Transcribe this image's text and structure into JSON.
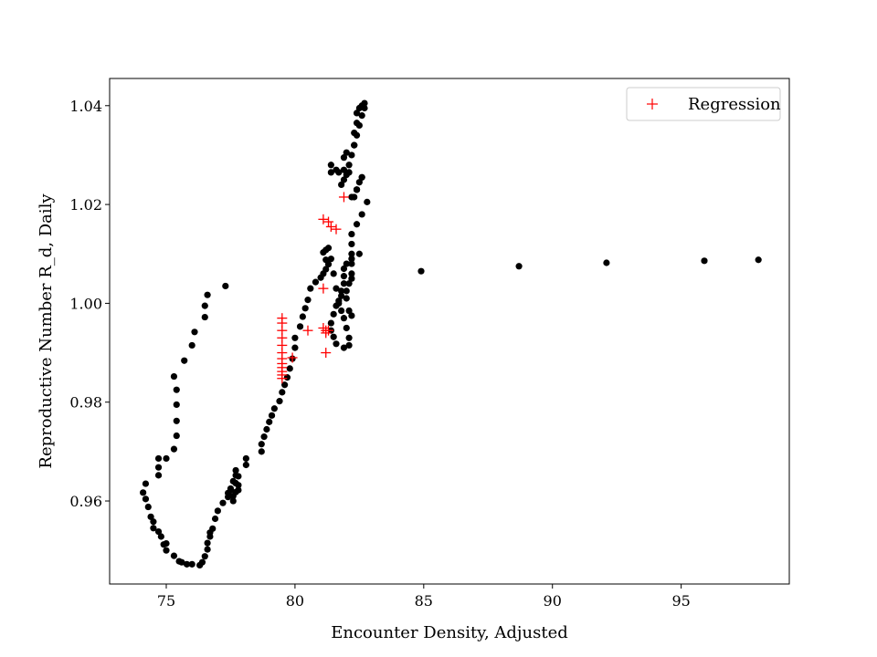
{
  "chart_data": {
    "type": "scatter",
    "title": "",
    "xlabel": "Encounter Density, Adjusted",
    "ylabel": "Reproductive Number R_d, Daily",
    "xlim": [
      72.8,
      99.2
    ],
    "ylim": [
      0.9432,
      1.0455
    ],
    "xticks": [
      75,
      80,
      85,
      90,
      95
    ],
    "yticks": [
      0.96,
      0.98,
      1.0,
      1.02,
      1.04
    ],
    "xtick_labels": [
      "75",
      "80",
      "85",
      "90",
      "95"
    ],
    "ytick_labels": [
      "0.96",
      "0.98",
      "1.00",
      "1.02",
      "1.04"
    ],
    "grid": false,
    "legend": {
      "position": "top-right",
      "entries": [
        "Regression"
      ]
    },
    "colors": {
      "data": "#000000",
      "regression": "#ff0000"
    },
    "series": [
      {
        "marker": "circle",
        "color": "#000000",
        "x": [
          77.3,
          76.6,
          76.5,
          76.5,
          76.1,
          76.0,
          75.7,
          75.3,
          75.4,
          75.4,
          75.4,
          75.4,
          75.3,
          75.0,
          74.7,
          74.7,
          74.7,
          74.2,
          74.1,
          74.2,
          74.3,
          74.4,
          74.5,
          74.5,
          74.7,
          74.8,
          74.9,
          75.0,
          75.0,
          75.3,
          75.5,
          75.6,
          75.8,
          76.0,
          76.3,
          76.4,
          76.5,
          76.6,
          76.6,
          76.7,
          76.7,
          76.8,
          76.9,
          77.0,
          77.2,
          77.4,
          77.5,
          77.6,
          77.6,
          77.7,
          77.8,
          77.8,
          77.7,
          77.5,
          77.4,
          77.6,
          77.7,
          77.7,
          77.8,
          78.1,
          78.1,
          78.7,
          78.7,
          78.8,
          78.9,
          79.0,
          79.1,
          79.2,
          79.4,
          79.5,
          79.6,
          79.7,
          79.8,
          79.9,
          80.0,
          80.0,
          80.2,
          80.3,
          80.4,
          80.5,
          80.6,
          80.8,
          81.0,
          81.1,
          81.2,
          81.3,
          81.2,
          81.1,
          81.2,
          81.3,
          81.4,
          81.5,
          81.6,
          81.7,
          81.8,
          81.9,
          82.0,
          82.1,
          82.1,
          81.9,
          81.6,
          81.5,
          81.4,
          81.4,
          81.5,
          81.6,
          81.7,
          81.8,
          81.8,
          81.9,
          81.9,
          81.9,
          82.0,
          82.2,
          82.5,
          82.2,
          82.2,
          82.1,
          82.0,
          82.0,
          82.1,
          82.2,
          82.2,
          82.2,
          82.2,
          82.2,
          82.4,
          82.6,
          82.8,
          82.4,
          82.1,
          81.9,
          81.7,
          81.6,
          81.4,
          81.4,
          81.9,
          82.0,
          82.3,
          82.3,
          82.4,
          82.4,
          82.5,
          82.6,
          82.7,
          82.7,
          82.6,
          82.5,
          82.4,
          82.3,
          82.2,
          82.1,
          82.0,
          81.9,
          81.8,
          82.4,
          82.5,
          82.6,
          82.6,
          82.4,
          82.3,
          82.2,
          84.9,
          88.7,
          92.1,
          95.9,
          98.0
        ],
        "y": [
          1.0035,
          1.0017,
          0.9995,
          0.9972,
          0.9942,
          0.9915,
          0.9884,
          0.9852,
          0.9825,
          0.9795,
          0.9762,
          0.9732,
          0.9705,
          0.9686,
          0.9668,
          0.9652,
          0.9686,
          0.9635,
          0.9617,
          0.9604,
          0.9588,
          0.9568,
          0.9558,
          0.9545,
          0.9538,
          0.9528,
          0.9512,
          0.95,
          0.9514,
          0.9489,
          0.9478,
          0.9476,
          0.9472,
          0.9472,
          0.947,
          0.9476,
          0.9488,
          0.9502,
          0.9515,
          0.9528,
          0.9536,
          0.9544,
          0.9564,
          0.958,
          0.9596,
          0.9608,
          0.9625,
          0.961,
          0.96,
          0.9618,
          0.9632,
          0.965,
          0.9636,
          0.9622,
          0.9616,
          0.964,
          0.9652,
          0.9662,
          0.9622,
          0.9673,
          0.9686,
          0.97,
          0.9715,
          0.973,
          0.9745,
          0.976,
          0.9773,
          0.9787,
          0.9802,
          0.982,
          0.9835,
          0.985,
          0.9868,
          0.9888,
          0.991,
          0.993,
          0.9953,
          0.9973,
          0.999,
          1.0007,
          1.003,
          1.0043,
          1.0052,
          1.006,
          1.0069,
          1.0079,
          1.0088,
          1.0103,
          1.0108,
          1.0112,
          1.009,
          1.006,
          1.003,
          1.0,
          0.9985,
          0.997,
          0.995,
          0.993,
          0.9915,
          0.991,
          0.9918,
          0.9932,
          0.9945,
          0.996,
          0.9978,
          0.9995,
          1.0005,
          1.0015,
          1.0025,
          1.004,
          1.0055,
          1.007,
          1.008,
          1.009,
          1.01,
          1.005,
          0.9975,
          0.9985,
          1.001,
          1.0025,
          1.004,
          1.006,
          1.008,
          1.01,
          1.012,
          1.014,
          1.016,
          1.018,
          1.0205,
          1.023,
          1.0265,
          1.027,
          1.0265,
          1.027,
          1.028,
          1.0265,
          1.0295,
          1.0305,
          1.032,
          1.0345,
          1.0365,
          1.0385,
          1.0395,
          1.04,
          1.0405,
          1.0395,
          1.038,
          1.036,
          1.034,
          1.032,
          1.03,
          1.028,
          1.026,
          1.025,
          1.024,
          1.023,
          1.0245,
          1.0255,
          1.0255,
          1.023,
          1.0215,
          1.0215,
          1.0065,
          1.0075,
          1.0082,
          1.0086,
          1.0088
        ]
      },
      {
        "name": "Regression",
        "marker": "plus",
        "color": "#ff0000",
        "x": [
          81.9,
          81.1,
          81.3,
          81.4,
          81.6,
          81.1,
          81.1,
          81.2,
          81.2,
          81.3,
          81.2,
          80.5,
          79.5,
          79.5,
          79.5,
          79.5,
          79.5,
          79.5,
          79.5,
          79.5,
          79.5,
          79.5,
          79.5,
          79.5,
          79.9
        ],
        "y": [
          1.0215,
          1.017,
          1.0165,
          1.0155,
          1.015,
          1.003,
          0.995,
          0.9945,
          0.994,
          0.9945,
          0.99,
          0.9945,
          0.997,
          0.996,
          0.9945,
          0.993,
          0.9915,
          0.99,
          0.9888,
          0.9878,
          0.987,
          0.9862,
          0.9855,
          0.9848,
          0.989
        ]
      }
    ]
  }
}
